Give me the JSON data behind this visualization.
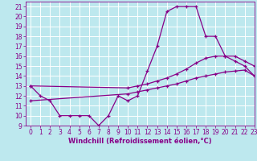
{
  "line1_x": [
    0,
    1,
    2,
    3,
    4,
    5,
    6,
    7,
    8,
    9,
    10,
    11,
    12,
    13,
    14,
    15,
    16,
    17,
    18,
    19,
    20,
    21,
    22,
    23
  ],
  "line1_y": [
    13,
    12,
    11.5,
    10,
    10,
    10,
    10,
    9,
    10,
    12,
    11.5,
    12,
    14.5,
    17,
    20.5,
    21,
    21,
    21,
    18,
    18,
    16,
    15.5,
    15,
    14
  ],
  "line2_x": [
    0,
    10,
    11,
    12,
    13,
    14,
    15,
    16,
    17,
    18,
    19,
    20,
    21,
    22,
    23
  ],
  "line2_y": [
    13,
    12.8,
    13.0,
    13.2,
    13.5,
    13.8,
    14.2,
    14.7,
    15.3,
    15.8,
    16.0,
    16.0,
    16.0,
    15.5,
    15.0
  ],
  "line3_x": [
    0,
    10,
    11,
    12,
    13,
    14,
    15,
    16,
    17,
    18,
    19,
    20,
    21,
    22,
    23
  ],
  "line3_y": [
    11.5,
    12.2,
    12.4,
    12.6,
    12.8,
    13.0,
    13.2,
    13.5,
    13.8,
    14.0,
    14.2,
    14.4,
    14.5,
    14.6,
    14.0
  ],
  "line_color": "#880088",
  "bg_color": "#bde8ee",
  "grid_color": "#ffffff",
  "xlabel": "Windchill (Refroidissement éolien,°C)",
  "xlim": [
    -0.5,
    23
  ],
  "ylim": [
    9,
    21.5
  ],
  "xticks": [
    0,
    1,
    2,
    3,
    4,
    5,
    6,
    7,
    8,
    9,
    10,
    11,
    12,
    13,
    14,
    15,
    16,
    17,
    18,
    19,
    20,
    21,
    22,
    23
  ],
  "yticks": [
    9,
    10,
    11,
    12,
    13,
    14,
    15,
    16,
    17,
    18,
    19,
    20,
    21
  ],
  "tick_fontsize": 5.5,
  "xlabel_fontsize": 6.0,
  "marker": "+"
}
